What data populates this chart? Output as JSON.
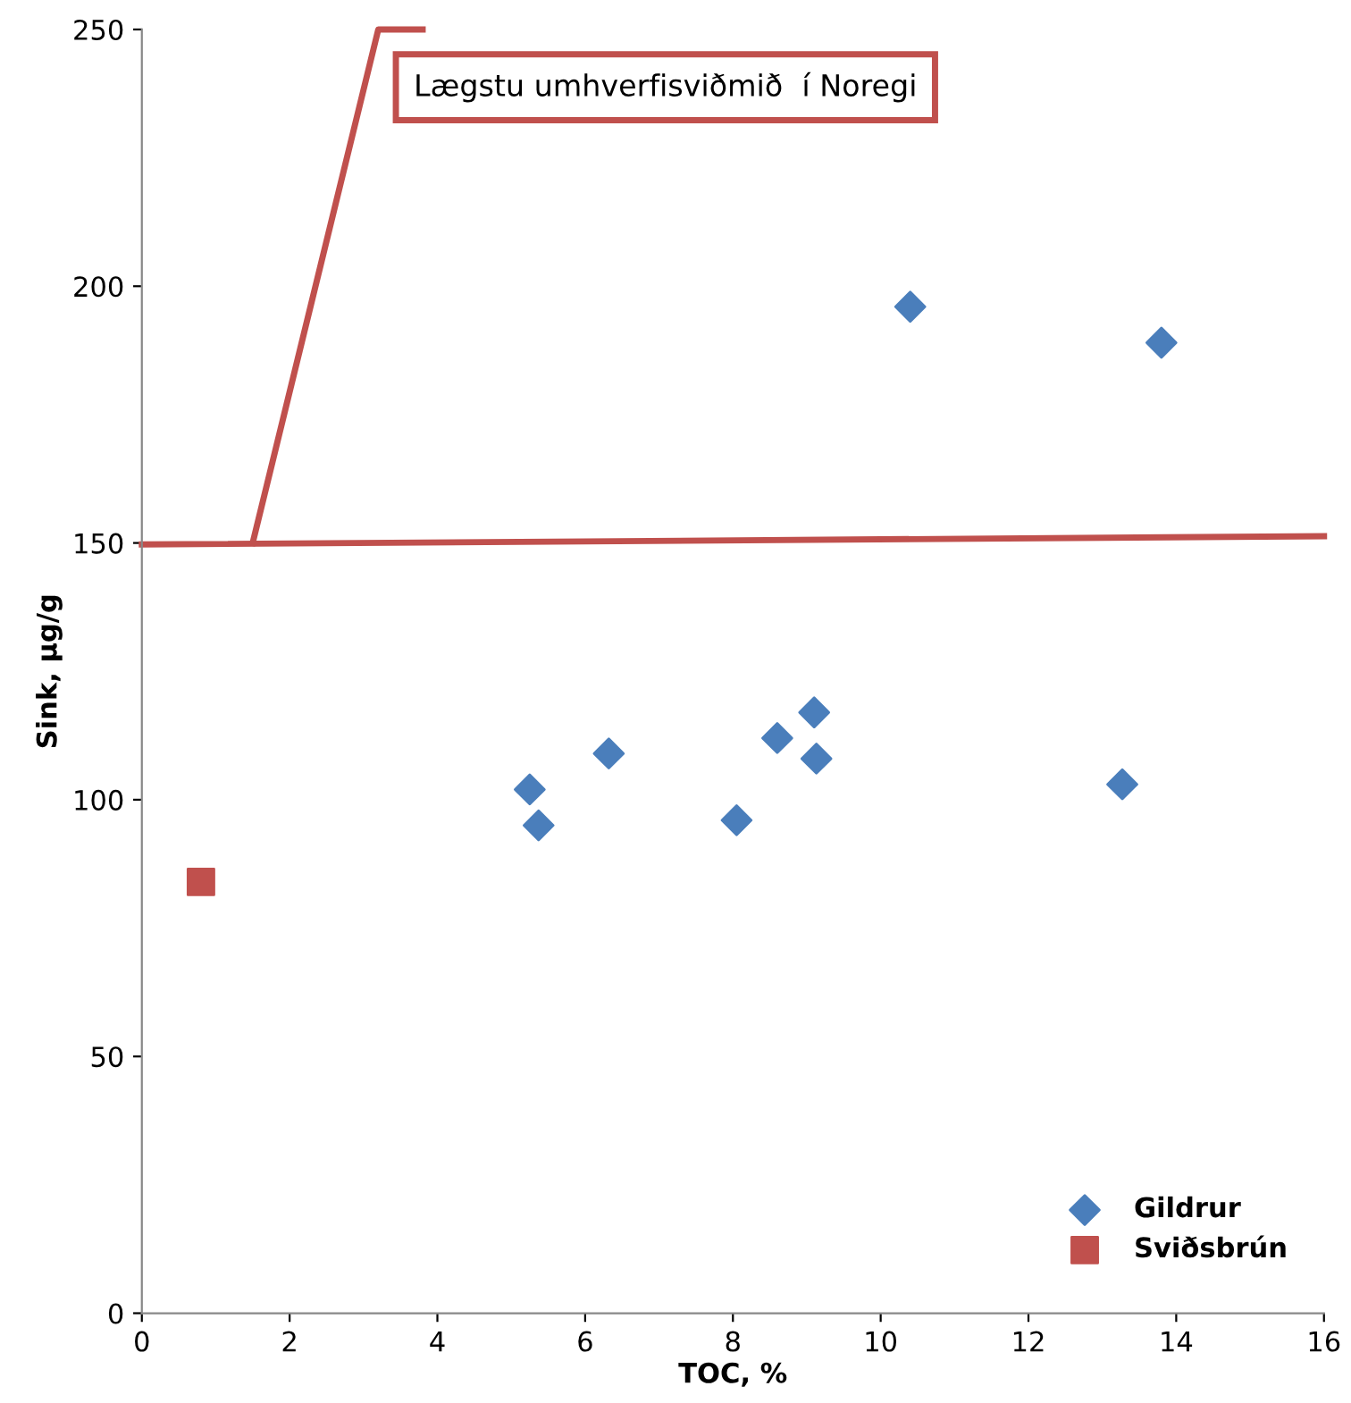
{
  "chart_data": {
    "type": "scatter",
    "xlabel": "TOC, %",
    "ylabel": "Sink, µg/g",
    "xlim": [
      0,
      16
    ],
    "ylim": [
      0,
      250
    ],
    "xticks": [
      0,
      2,
      4,
      6,
      8,
      10,
      12,
      14,
      16
    ],
    "yticks": [
      0,
      50,
      100,
      150,
      200,
      250
    ],
    "grid": false,
    "legend": "bottom right",
    "annotations": [
      "Lægstu umhverfisviðmið  í Noregi"
    ],
    "series": [
      {
        "name": "Gildrur",
        "color": "#4a7ebb",
        "marker": "diamond",
        "x": [
          5.25,
          5.37,
          6.32,
          8.05,
          8.6,
          9.1,
          9.13,
          10.4,
          13.27,
          13.8
        ],
        "values": [
          102,
          95,
          109,
          96,
          112,
          117,
          108,
          196,
          103,
          189
        ]
      },
      {
        "name": "Sviðsbrún",
        "color": "#c0504d",
        "marker": "square",
        "x": [
          0.8
        ],
        "values": [
          84
        ]
      },
      {
        "type": "line",
        "color": "#c0504d",
        "marker": "none",
        "x": [
          0,
          16
        ],
        "values": [
          149.7,
          151.3
        ]
      },
      {
        "type": "line",
        "color": "#c0504d",
        "marker": "none",
        "x": [
          1.5,
          3.2,
          3.8
        ],
        "values": [
          150,
          250,
          250
        ]
      }
    ]
  }
}
